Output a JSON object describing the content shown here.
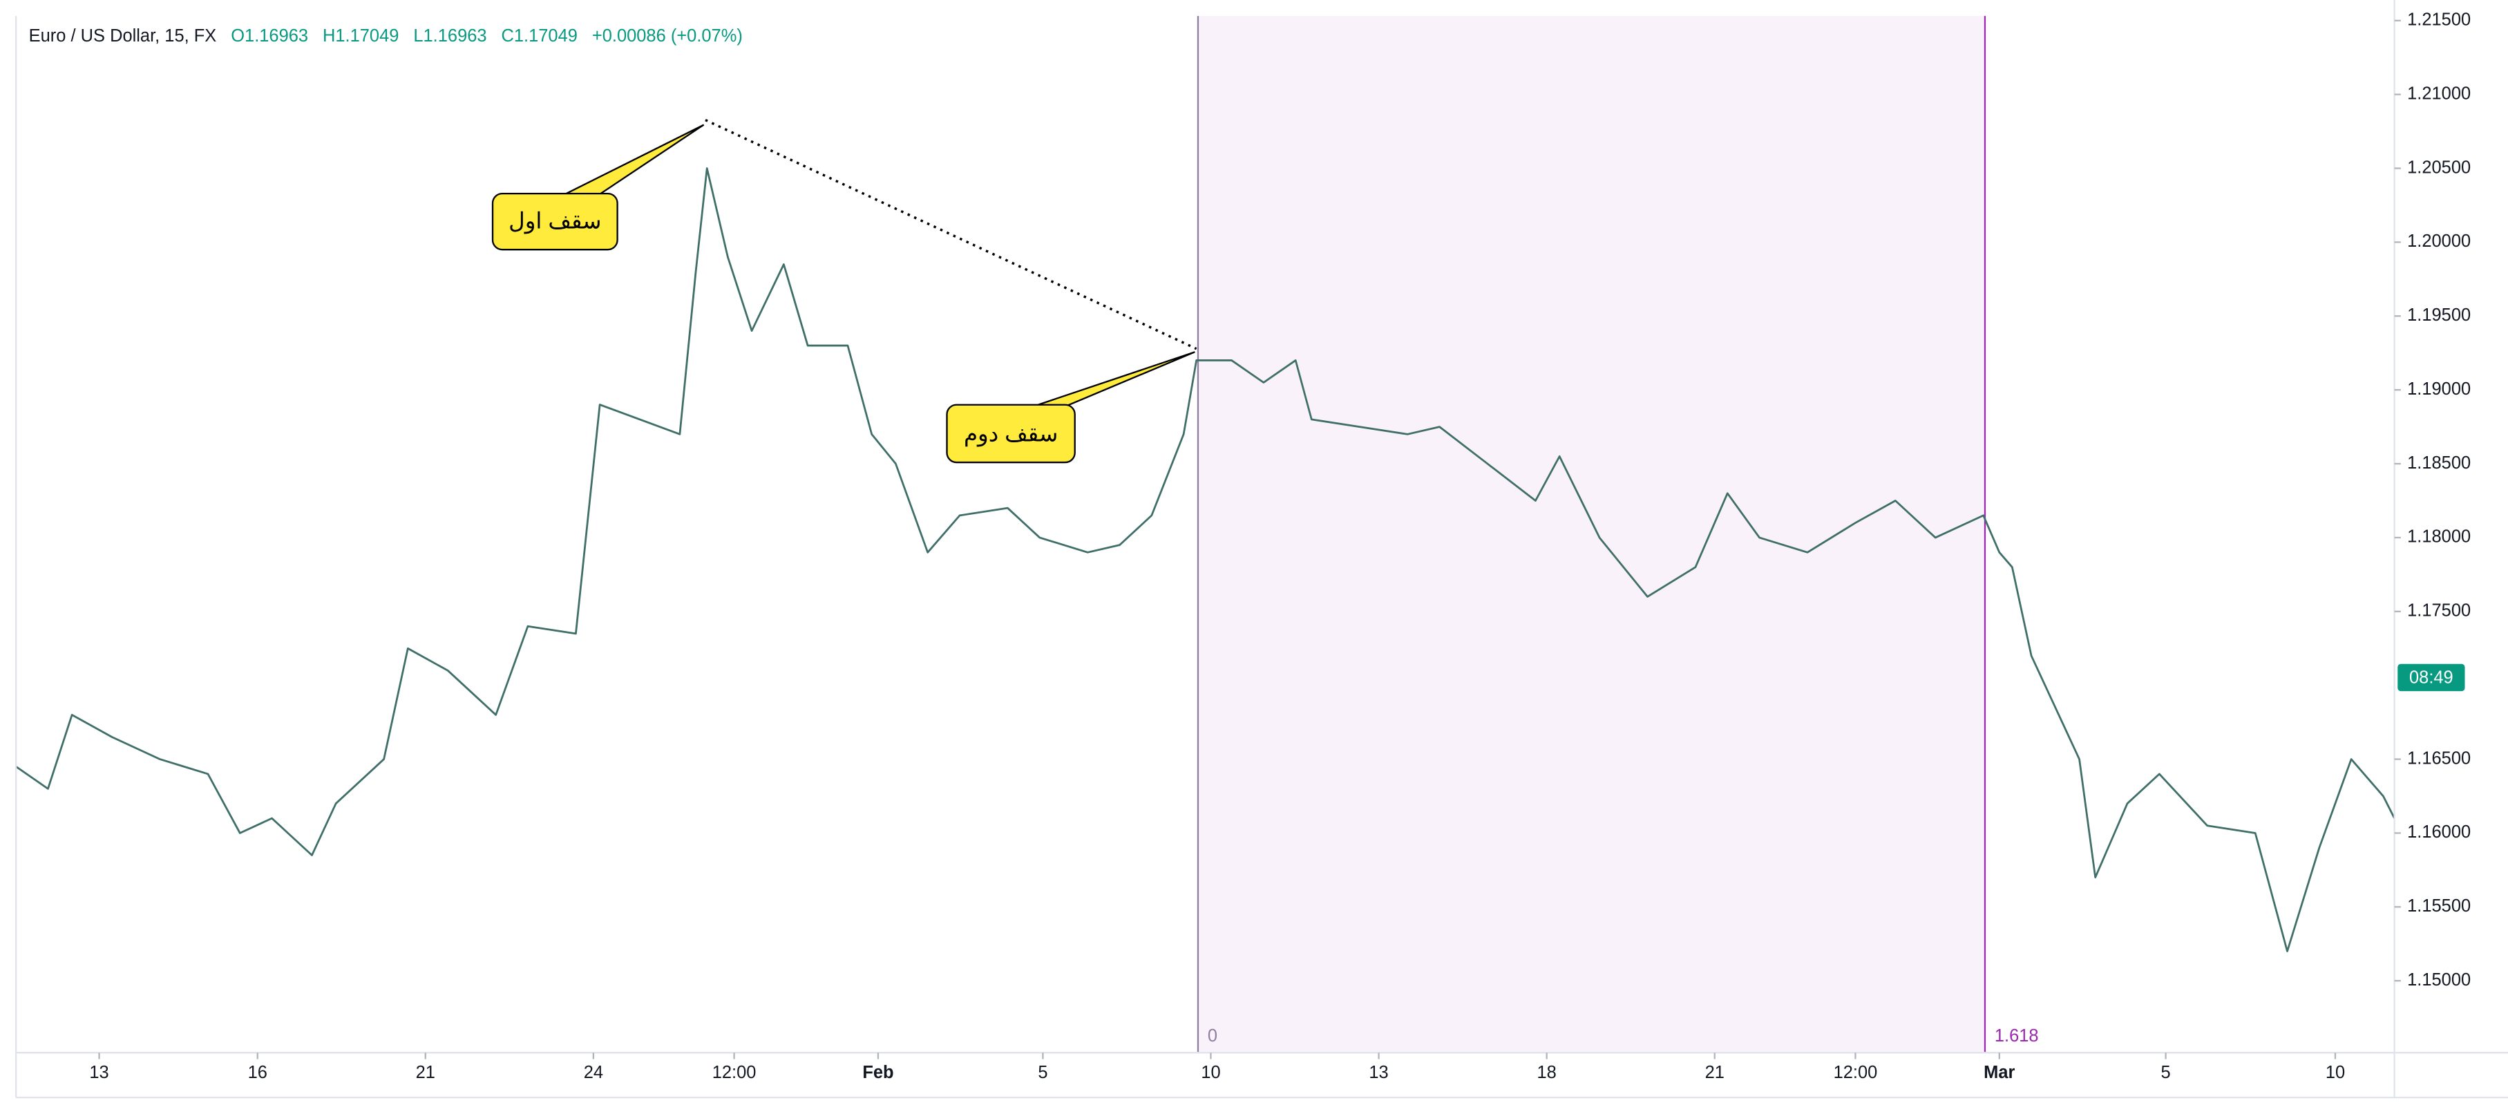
{
  "chart_data": {
    "type": "line",
    "header": {
      "symbol": "Euro / US Dollar, 15, FX",
      "open": "O1.16963",
      "high": "H1.17049",
      "low": "L1.16963",
      "close": "C1.17049",
      "change": "+0.00086 (+0.07%)"
    },
    "color": "#3f6f68",
    "x": [
      0,
      20,
      35,
      60,
      90,
      120,
      140,
      160,
      185,
      200,
      230,
      245,
      270,
      290,
      300,
      320,
      350,
      365,
      390,
      415,
      425,
      432,
      445,
      460,
      480,
      495,
      520,
      535,
      550,
      570,
      590,
      620,
      640,
      670,
      690,
      710,
      730,
      738,
      760,
      780,
      800,
      810,
      840,
      870,
      890,
      920,
      950,
      965,
      990,
      1020,
      1050,
      1070,
      1090,
      1120,
      1150,
      1175,
      1200,
      1230,
      1240,
      1248,
      1260,
      1290,
      1300,
      1320,
      1340,
      1370,
      1400,
      1420,
      1440,
      1460,
      1480,
      1487
    ],
    "values": [
      1.1645,
      1.163,
      1.168,
      1.1665,
      1.165,
      1.164,
      1.16,
      1.161,
      1.1585,
      1.162,
      1.165,
      1.1725,
      1.171,
      1.169,
      1.168,
      1.174,
      1.1735,
      1.189,
      1.188,
      1.187,
      1.198,
      1.205,
      1.199,
      1.194,
      1.1985,
      1.193,
      1.193,
      1.187,
      1.185,
      1.179,
      1.1815,
      1.182,
      1.18,
      1.179,
      1.1795,
      1.1815,
      1.187,
      1.192,
      1.192,
      1.1905,
      1.192,
      1.188,
      1.1875,
      1.187,
      1.1875,
      1.185,
      1.1825,
      1.1855,
      1.18,
      1.176,
      1.178,
      1.183,
      1.18,
      1.179,
      1.181,
      1.1825,
      1.18,
      1.1815,
      1.179,
      1.178,
      1.172,
      1.165,
      1.157,
      1.162,
      1.164,
      1.1605,
      1.16,
      1.152,
      1.159,
      1.165,
      1.1625,
      1.161
    ],
    "xlim": [
      0,
      1487
    ],
    "xticks": [
      {
        "value": 52,
        "label": "13"
      },
      {
        "value": 151,
        "label": "16"
      },
      {
        "value": 256,
        "label": "21"
      },
      {
        "value": 361,
        "label": "24"
      },
      {
        "value": 449,
        "label": "12:00"
      },
      {
        "value": 539,
        "label": "Feb"
      },
      {
        "value": 642,
        "label": "5"
      },
      {
        "value": 747,
        "label": "10"
      },
      {
        "value": 852,
        "label": "13"
      },
      {
        "value": 957,
        "label": "18"
      },
      {
        "value": 1062,
        "label": "21"
      },
      {
        "value": 1150,
        "label": "12:00"
      },
      {
        "value": 1240,
        "label": "Mar"
      },
      {
        "value": 1344,
        "label": "5"
      },
      {
        "value": 1450,
        "label": "10"
      }
    ],
    "ylim": [
      1.14513,
      1.21531
    ],
    "yticks": [
      {
        "value": 1.15,
        "label": "1.15000"
      },
      {
        "value": 1.155,
        "label": "1.15500"
      },
      {
        "value": 1.16,
        "label": "1.16000"
      },
      {
        "value": 1.165,
        "label": "1.16500"
      },
      {
        "value": 1.175,
        "label": "1.17500"
      },
      {
        "value": 1.18,
        "label": "1.18000"
      },
      {
        "value": 1.185,
        "label": "1.18500"
      },
      {
        "value": 1.19,
        "label": "1.19000"
      },
      {
        "value": 1.195,
        "label": "1.19500"
      },
      {
        "value": 1.2,
        "label": "1.20000"
      },
      {
        "value": 1.205,
        "label": "1.20500"
      },
      {
        "value": 1.21,
        "label": "1.21000"
      },
      {
        "value": 1.215,
        "label": "1.21500"
      }
    ],
    "countdown": "08:49",
    "fib_labels": [
      "0",
      "1.618"
    ],
    "annotations": [
      "سقف اول",
      "سقف دوم"
    ]
  }
}
